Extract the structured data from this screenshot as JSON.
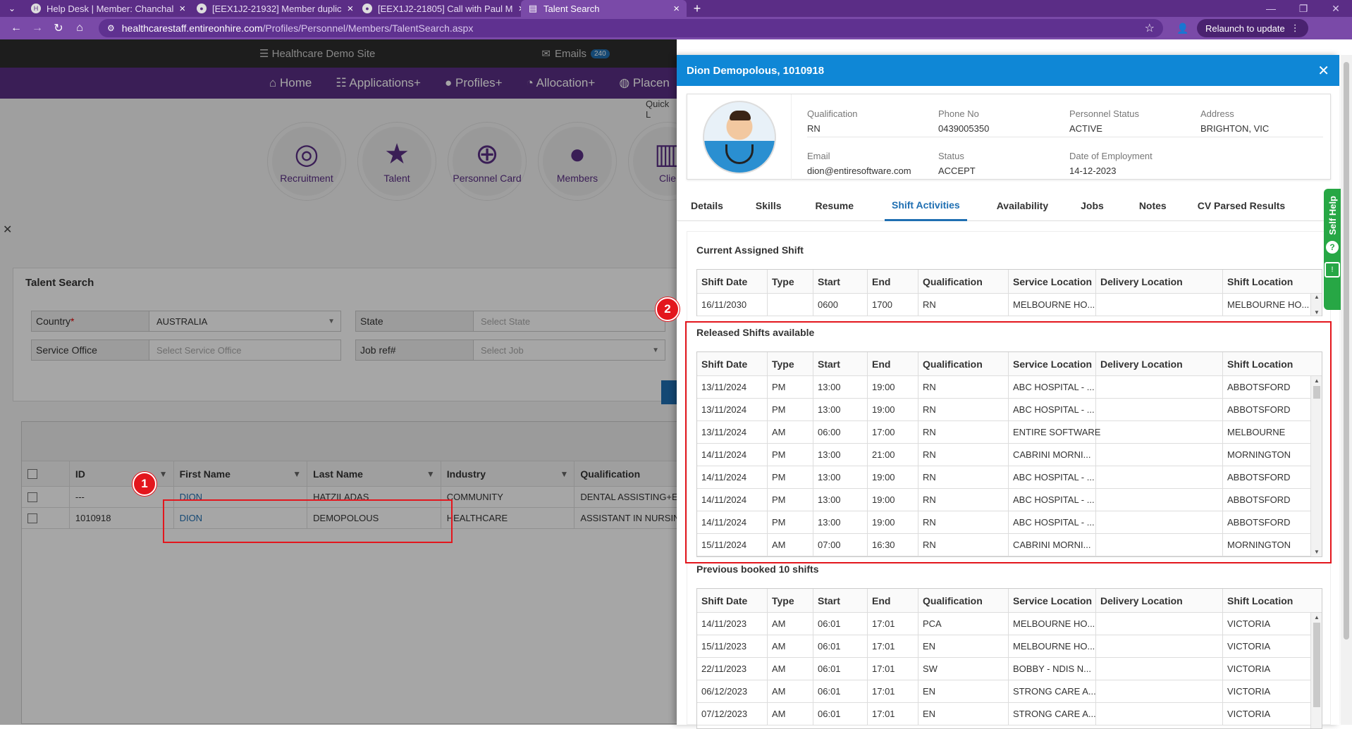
{
  "browser": {
    "tabs": [
      {
        "title": "Help Desk | Member: Chanchal",
        "icon": "H"
      },
      {
        "title": "[EEX1J2-21932] Member duplic",
        "icon": "●"
      },
      {
        "title": "[EEX1J2-21805] Call with Paul M",
        "icon": "●"
      },
      {
        "title": "Talent Search",
        "icon": "▤"
      }
    ],
    "url_host": "healthcarestaff.entireonhire.com",
    "url_path": "/Profiles/Personnel/Members/TalentSearch.aspx",
    "relaunch": "Relaunch to update"
  },
  "site": {
    "name": "Healthcare Demo Site",
    "emails_label": "Emails",
    "emails_count": "240",
    "nav": [
      "Home",
      "Applications+",
      "Profiles+",
      "Allocation+",
      "Placen"
    ],
    "quick_label": "Quick L",
    "quick_icons": [
      {
        "label": "Recruitment",
        "icon": "recruitment-icon",
        "glyph": "◎"
      },
      {
        "label": "Talent",
        "icon": "star-icon",
        "glyph": "★"
      },
      {
        "label": "Personnel Card",
        "icon": "search-plus-icon",
        "glyph": "⊕"
      },
      {
        "label": "Members",
        "icon": "user-icon",
        "glyph": "●"
      },
      {
        "label": "Clie",
        "icon": "building-icon",
        "glyph": "▥"
      }
    ]
  },
  "talent_search": {
    "title": "Talent Search",
    "country_label": "Country",
    "country_required": "*",
    "country_value": "AUSTRALIA",
    "state_label": "State",
    "state_placeholder": "Select State",
    "service_office_label": "Service Office",
    "service_office_placeholder": "Select Service Office",
    "jobref_label": "Job ref#",
    "jobref_placeholder": "Select Job"
  },
  "results": {
    "columns": [
      "ID",
      "First Name",
      "Last Name",
      "Industry",
      "Qualification"
    ],
    "rows": [
      {
        "id": "---",
        "first": "DION",
        "last": "HATZILADAS",
        "industry": "COMMUNITY",
        "qualification": "DENTAL ASSISTING+E"
      },
      {
        "id": "1010918",
        "first": "DION",
        "last": "DEMOPOLOUS",
        "industry": "HEALTHCARE",
        "qualification": "ASSISTANT IN NURSIN"
      }
    ]
  },
  "markers": {
    "m1": "1",
    "m2": "2"
  },
  "panel": {
    "title": "Dion Demopolous, 1010918",
    "profile": {
      "qualification_label": "Qualification",
      "qualification": "RN",
      "phone_label": "Phone No",
      "phone": "0439005350",
      "status_label": "Personnel Status",
      "personnel_status": "ACTIVE",
      "address_label": "Address",
      "address": "BRIGHTON, VIC",
      "email_label": "Email",
      "email": "dion@entiresoftware.com",
      "status2_label": "Status",
      "status": "ACCEPT",
      "doe_label": "Date of Employment",
      "date_of_employment": "14-12-2023"
    },
    "tabs": [
      "Details",
      "Skills",
      "Resume",
      "Shift Activities",
      "Availability",
      "Jobs",
      "Notes",
      "CV Parsed Results"
    ],
    "columns": [
      "Shift Date",
      "Type",
      "Start",
      "End",
      "Qualification",
      "Service Location",
      "Delivery Location",
      "Shift Location"
    ],
    "current": {
      "title": "Current Assigned Shift",
      "rows": [
        [
          "16/11/2030",
          "",
          "0600",
          "1700",
          "RN",
          "MELBOURNE HO...",
          "",
          "MELBOURNE HO..."
        ]
      ]
    },
    "released": {
      "title": "Released Shifts available",
      "rows": [
        [
          "13/11/2024",
          "PM",
          "13:00",
          "19:00",
          "RN",
          "ABC HOSPITAL - ...",
          "",
          "ABBOTSFORD"
        ],
        [
          "13/11/2024",
          "PM",
          "13:00",
          "19:00",
          "RN",
          "ABC HOSPITAL - ...",
          "",
          "ABBOTSFORD"
        ],
        [
          "13/11/2024",
          "AM",
          "06:00",
          "17:00",
          "RN",
          "ENTIRE SOFTWARE",
          "",
          "MELBOURNE"
        ],
        [
          "14/11/2024",
          "PM",
          "13:00",
          "21:00",
          "RN",
          "CABRINI MORNI...",
          "",
          "MORNINGTON"
        ],
        [
          "14/11/2024",
          "PM",
          "13:00",
          "19:00",
          "RN",
          "ABC HOSPITAL - ...",
          "",
          "ABBOTSFORD"
        ],
        [
          "14/11/2024",
          "PM",
          "13:00",
          "19:00",
          "RN",
          "ABC HOSPITAL - ...",
          "",
          "ABBOTSFORD"
        ],
        [
          "14/11/2024",
          "PM",
          "13:00",
          "19:00",
          "RN",
          "ABC HOSPITAL - ...",
          "",
          "ABBOTSFORD"
        ],
        [
          "15/11/2024",
          "AM",
          "07:00",
          "16:30",
          "RN",
          "CABRINI MORNI...",
          "",
          "MORNINGTON"
        ]
      ]
    },
    "previous": {
      "title": "Previous booked 10 shifts",
      "rows": [
        [
          "14/11/2023",
          "AM",
          "06:01",
          "17:01",
          "PCA",
          "MELBOURNE HO...",
          "",
          "VICTORIA"
        ],
        [
          "15/11/2023",
          "AM",
          "06:01",
          "17:01",
          "EN",
          "MELBOURNE HO...",
          "",
          "VICTORIA"
        ],
        [
          "22/11/2023",
          "AM",
          "06:01",
          "17:01",
          "SW",
          "BOBBY - NDIS N...",
          "",
          "VICTORIA"
        ],
        [
          "06/12/2023",
          "AM",
          "06:01",
          "17:01",
          "EN",
          "STRONG CARE A...",
          "",
          "VICTORIA"
        ],
        [
          "07/12/2023",
          "AM",
          "06:01",
          "17:01",
          "EN",
          "STRONG CARE A...",
          "",
          "VICTORIA"
        ]
      ]
    }
  },
  "self_help": "Self Help",
  "colors": {
    "purple": "#5a2e84",
    "panel_blue": "#0f87d6",
    "accent": "#1f6fb2",
    "callout_red": "#e3161d",
    "help_green": "#27a745"
  }
}
